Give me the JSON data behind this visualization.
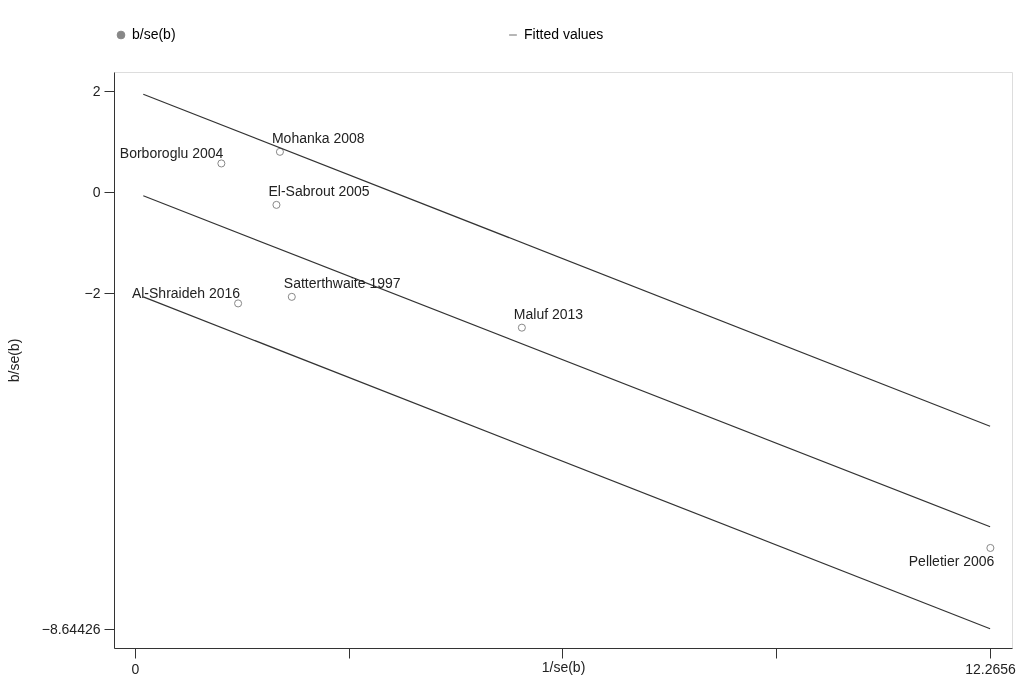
{
  "chart_data": {
    "type": "scatter",
    "xlabel": "1/se(b)",
    "ylabel": "b/se(b)",
    "xlim": [
      -0.3,
      12.58
    ],
    "ylim": [
      -9.02,
      2.38
    ],
    "xticks": [
      0,
      {
        "value": 3.0664,
        "label": null
      },
      {
        "value": 6.1328,
        "label": null
      },
      {
        "value": 9.1992,
        "label": null
      },
      12.2656
    ],
    "yticks": [
      2,
      0,
      -2,
      -8.64426
    ],
    "grid": false,
    "legend": "top",
    "series": [
      {
        "name": "b/se(b)",
        "marker": "circle",
        "color": "#555555",
        "x": [
          1.24,
          2.08,
          2.03,
          1.48,
          2.25,
          5.55,
          12.27
        ],
        "values": [
          0.57,
          0.8,
          -0.25,
          -2.2,
          -2.07,
          -2.68,
          -7.04
        ]
      },
      {
        "name": "Fitted values",
        "type": "line",
        "color": "#333333",
        "x": [
          0.12,
          12.2656
        ],
        "values": [
          1.94,
          -4.63
        ]
      },
      {
        "type": "line",
        "color": "#333333",
        "x": [
          0.12,
          12.2656
        ],
        "values": [
          -0.07,
          -6.62
        ]
      },
      {
        "type": "line",
        "color": "#333333",
        "x": [
          0.12,
          12.2656
        ],
        "values": [
          -2.07,
          -8.64
        ]
      }
    ],
    "annotations": [
      {
        "text": "Borboroglu 2004",
        "x": 1.24,
        "y": 0.57
      },
      {
        "text": "Mohanka 2008",
        "x": 2.08,
        "y": 0.8
      },
      {
        "text": "El-Sabrout 2005",
        "x": 2.03,
        "y": -0.25
      },
      {
        "text": "Al-Shraideh 2016",
        "x": 1.48,
        "y": -2.2
      },
      {
        "text": "Satterthwaite 1997",
        "x": 2.25,
        "y": -2.07
      },
      {
        "text": "Maluf 2013",
        "x": 5.55,
        "y": -2.68
      },
      {
        "text": "Pelletier 2006",
        "x": 12.27,
        "y": -7.04
      }
    ]
  }
}
